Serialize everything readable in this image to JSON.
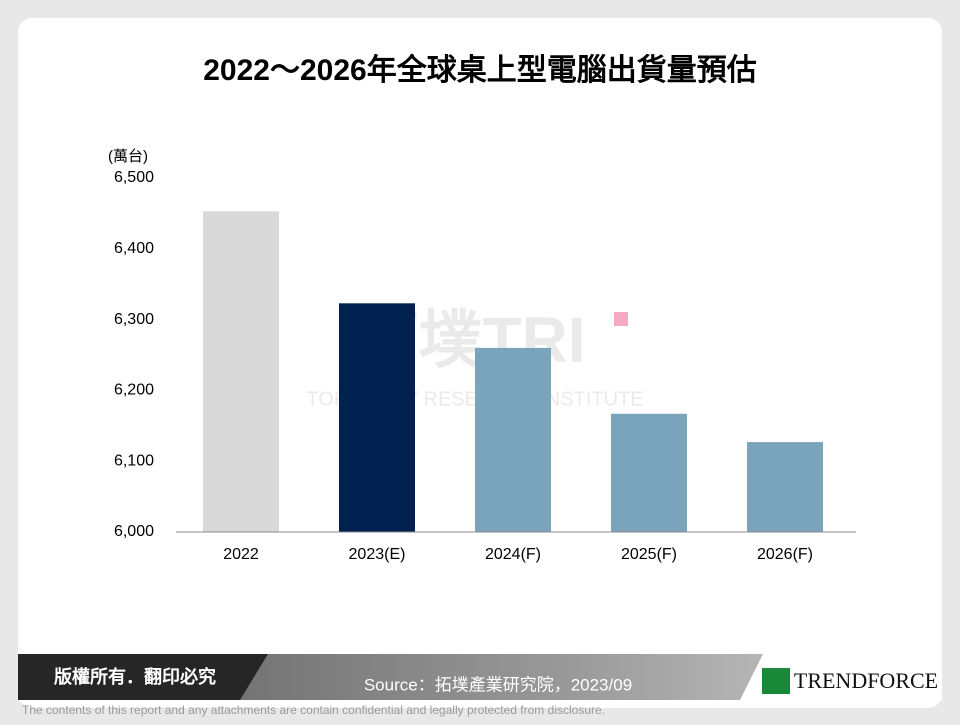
{
  "chart_data": {
    "type": "bar",
    "title": "2022～2026年全球桌上型電腦出貨量預估",
    "y_unit": "(萬台)",
    "categories": [
      "2022",
      "2023(E)",
      "2024(F)",
      "2025(F)",
      "2026(F)"
    ],
    "values": [
      6453,
      6323,
      6260,
      6167,
      6127
    ],
    "colors": [
      "#d9d9d9",
      "#002050",
      "#7aa3bc",
      "#7aa3bc",
      "#7aa3bc"
    ],
    "ylim": [
      6000,
      6500
    ],
    "yticks": [
      {
        "value": 6000,
        "label": "6,000"
      },
      {
        "value": 6100,
        "label": "6,100"
      },
      {
        "value": 6200,
        "label": "6,200"
      },
      {
        "value": 6300,
        "label": "6,300"
      },
      {
        "value": 6400,
        "label": "6,400"
      },
      {
        "value": 6500,
        "label": "6,500"
      }
    ],
    "grid": false
  },
  "watermark": {
    "name": "拓墣TRI",
    "english": "TOPOLOGY RESEARCH INSTITUTE"
  },
  "footer": {
    "copyright": "版權所有．翻印必究",
    "source": "Source：拓墣產業研究院，2023/09",
    "logo": "TRENDFORCE",
    "disclaimer": "The contents of this report and any attachments are contain confidential and legally protected from disclosure."
  }
}
